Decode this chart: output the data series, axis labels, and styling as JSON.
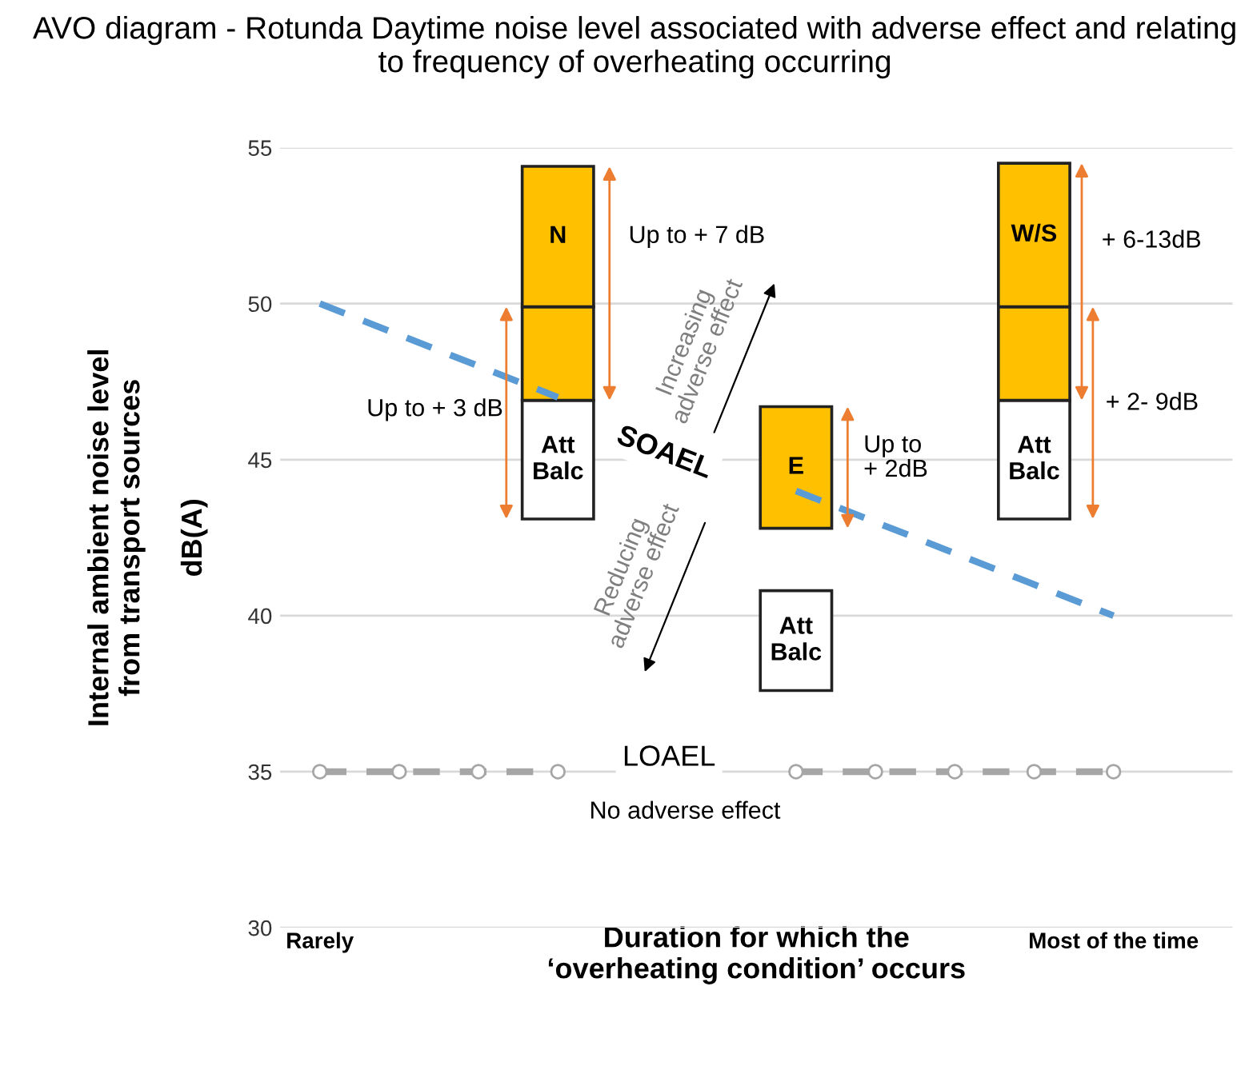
{
  "chart_data": {
    "type": "bar",
    "title": "AVO diagram - Rotunda Daytime noise level associated with adverse effect and relating to frequency of overheating occurring",
    "xlabel": "Duration for which the\n‘overheating condition’ occurs",
    "ylabel": "Internal ambient noise level\nfrom transport sources\n\ndB(A)",
    "categories": [
      "Rarely",
      null,
      null,
      null,
      null,
      null,
      null,
      null,
      null,
      null,
      "Most of the time"
    ],
    "ylim": [
      30,
      55
    ],
    "yticks": [
      30,
      35,
      40,
      45,
      50,
      55
    ],
    "grid": "y",
    "series": [
      {
        "color": "#ffffff",
        "base": [
          null,
          null,
          null,
          43.1,
          null,
          null,
          37.6,
          null,
          null,
          43.1,
          null
        ],
        "values": [
          null,
          null,
          null,
          3.8,
          null,
          null,
          3.2,
          null,
          null,
          3.8,
          null
        ],
        "value_labels": [
          null,
          null,
          null,
          "Att\nBalc",
          null,
          null,
          "Att\nBalc",
          null,
          null,
          "Att\nBalc",
          null
        ]
      },
      {
        "color": "#ffc000",
        "base": [
          null,
          null,
          null,
          46.9,
          null,
          null,
          42.8,
          null,
          null,
          46.9,
          null
        ],
        "values": [
          null,
          null,
          null,
          3.0,
          null,
          null,
          3.9,
          null,
          null,
          3.0,
          null
        ],
        "value_labels": [
          null,
          null,
          null,
          null,
          null,
          null,
          "E",
          null,
          null,
          null,
          null
        ]
      },
      {
        "color": "#ffc000",
        "base": [
          null,
          null,
          null,
          49.9,
          null,
          null,
          null,
          null,
          null,
          49.9,
          null
        ],
        "values": [
          null,
          null,
          null,
          4.5,
          null,
          null,
          null,
          null,
          null,
          4.6,
          null
        ],
        "value_labels": [
          null,
          null,
          null,
          "N",
          null,
          null,
          null,
          null,
          null,
          "W/S",
          null
        ]
      },
      {
        "type": "line",
        "name": "SOAEL",
        "color": "#5b9bd5",
        "line_style": "dashed",
        "values": [
          50,
          49,
          48,
          47,
          null,
          null,
          44,
          43,
          42,
          41,
          40
        ]
      },
      {
        "type": "line",
        "name": "LOAEL",
        "color": "#a6a6a6",
        "line_style": "dashed",
        "marker": "circle",
        "values": [
          35,
          35,
          35,
          35,
          null,
          null,
          35,
          35,
          35,
          35,
          35
        ]
      }
    ],
    "annotations": [
      "Up to + 3 dB",
      "Up to + 7 dB",
      "Up to\n+ 2dB",
      "+ 6-13dB",
      "+ 2- 9dB",
      "No adverse effect",
      "Increasing\nadverse effect",
      "Reducing\nadverse effect"
    ]
  }
}
